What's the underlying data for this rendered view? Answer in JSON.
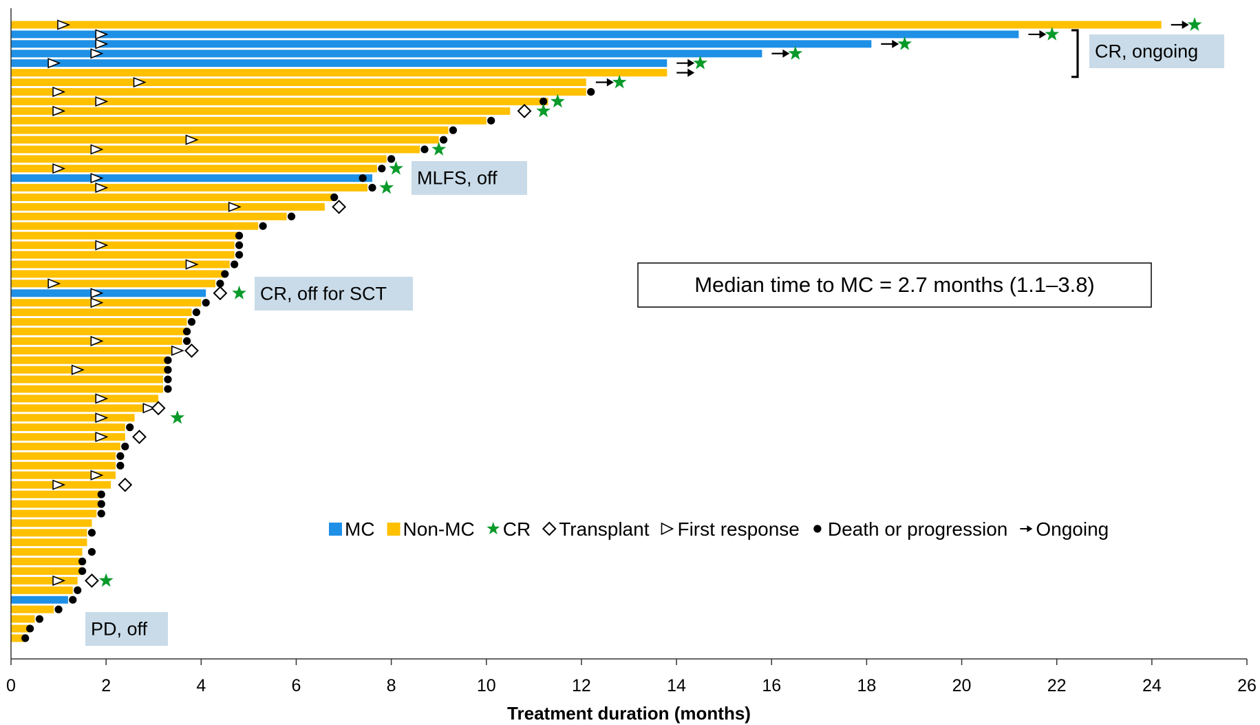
{
  "chart_data": {
    "type": "bar",
    "orientation": "horizontal",
    "title": "",
    "xlabel": "Treatment duration (months)",
    "ylabel": "",
    "xlim": [
      0,
      26
    ],
    "xticks": [
      "0",
      "2",
      "4",
      "6",
      "8",
      "10",
      "12",
      "14",
      "16",
      "18",
      "20",
      "22",
      "24",
      "26"
    ],
    "grid": false,
    "colors": {
      "MC": "#1e90e6",
      "Non-MC": "#ffc000",
      "CR": "#0a9a2a",
      "marker": "#000000",
      "annotation_bg": "#c9dbe8"
    },
    "legend": {
      "placement": "center-right",
      "entries": [
        {
          "name": "MC",
          "symbol": "square-blue"
        },
        {
          "name": "Non-MC",
          "symbol": "square-orange"
        },
        {
          "name": "CR",
          "symbol": "star"
        },
        {
          "name": "Transplant",
          "symbol": "diamond"
        },
        {
          "name": "First response",
          "symbol": "triangle"
        },
        {
          "name": "Death or progression",
          "symbol": "dot"
        },
        {
          "name": "Ongoing",
          "symbol": "arrow"
        }
      ]
    },
    "patients": [
      {
        "duration": 24.2,
        "mc": false,
        "first_response": 1.1,
        "ongoing": true,
        "cr": 24.9
      },
      {
        "duration": 21.2,
        "mc": true,
        "first_response": 1.9,
        "ongoing": true,
        "cr": 21.9
      },
      {
        "duration": 18.1,
        "mc": true,
        "first_response": 1.9,
        "ongoing": true,
        "cr": 18.8
      },
      {
        "duration": 15.8,
        "mc": true,
        "first_response": 1.8,
        "ongoing": true,
        "cr": 16.5
      },
      {
        "duration": 13.8,
        "mc": true,
        "first_response": 0.9,
        "ongoing": true,
        "cr": 14.5
      },
      {
        "duration": 13.8,
        "mc": false,
        "ongoing": true
      },
      {
        "duration": 12.1,
        "mc": false,
        "first_response": 2.7,
        "ongoing": true,
        "cr": 12.8
      },
      {
        "duration": 12.1,
        "mc": false,
        "first_response": 1.0,
        "death": 12.2
      },
      {
        "duration": 11.3,
        "mc": false,
        "first_response": 1.9,
        "death": 11.2,
        "cr": 11.5
      },
      {
        "duration": 10.5,
        "mc": false,
        "first_response": 1.0,
        "transplant": 10.8,
        "cr": 11.2
      },
      {
        "duration": 10.0,
        "mc": false,
        "death": 10.1
      },
      {
        "duration": 9.2,
        "mc": false,
        "death": 9.3
      },
      {
        "duration": 9.0,
        "mc": false,
        "first_response": 3.8,
        "death": 9.1
      },
      {
        "duration": 8.6,
        "mc": false,
        "first_response": 1.8,
        "death": 8.7,
        "cr": 9.0
      },
      {
        "duration": 7.9,
        "mc": false,
        "death": 8.0
      },
      {
        "duration": 7.7,
        "mc": false,
        "first_response": 1.0,
        "death": 7.8,
        "cr": 8.1
      },
      {
        "duration": 7.6,
        "mc": true,
        "first_response": 1.8,
        "death": 7.4
      },
      {
        "duration": 7.5,
        "mc": false,
        "first_response": 1.9,
        "death": 7.6,
        "cr": 7.9
      },
      {
        "duration": 6.8,
        "mc": false,
        "death": 6.8
      },
      {
        "duration": 6.6,
        "mc": false,
        "first_response": 4.7,
        "transplant": 6.9
      },
      {
        "duration": 5.8,
        "mc": false,
        "death": 5.9
      },
      {
        "duration": 5.2,
        "mc": false,
        "death": 5.3
      },
      {
        "duration": 4.8,
        "mc": false,
        "death": 4.8
      },
      {
        "duration": 4.7,
        "mc": false,
        "first_response": 1.9,
        "death": 4.8
      },
      {
        "duration": 4.7,
        "mc": false,
        "death": 4.8
      },
      {
        "duration": 4.6,
        "mc": false,
        "first_response": 3.8,
        "death": 4.7
      },
      {
        "duration": 4.5,
        "mc": false,
        "death": 4.5
      },
      {
        "duration": 4.3,
        "mc": false,
        "first_response": 0.9,
        "death": 4.4
      },
      {
        "duration": 4.1,
        "mc": true,
        "first_response": 1.8,
        "transplant": 4.4,
        "cr": 4.8
      },
      {
        "duration": 4.0,
        "mc": false,
        "first_response": 1.8,
        "death": 4.1
      },
      {
        "duration": 3.8,
        "mc": false,
        "death": 3.9
      },
      {
        "duration": 3.7,
        "mc": false,
        "death": 3.8
      },
      {
        "duration": 3.7,
        "mc": false,
        "death": 3.7
      },
      {
        "duration": 3.6,
        "mc": false,
        "first_response": 1.8,
        "death": 3.7
      },
      {
        "duration": 3.4,
        "mc": false,
        "first_response": 3.5,
        "transplant": 3.8
      },
      {
        "duration": 3.3,
        "mc": false,
        "death": 3.3
      },
      {
        "duration": 3.3,
        "mc": false,
        "first_response": 1.4,
        "death": 3.3
      },
      {
        "duration": 3.2,
        "mc": false,
        "death": 3.3
      },
      {
        "duration": 3.2,
        "mc": false,
        "death": 3.3
      },
      {
        "duration": 3.1,
        "mc": false,
        "first_response": 1.9
      },
      {
        "duration": 2.8,
        "mc": false,
        "first_response": 2.9,
        "transplant": 3.1
      },
      {
        "duration": 2.6,
        "mc": false,
        "first_response": 1.9,
        "cr": 3.5
      },
      {
        "duration": 2.4,
        "mc": false,
        "death": 2.5
      },
      {
        "duration": 2.4,
        "mc": false,
        "first_response": 1.9,
        "transplant": 2.7
      },
      {
        "duration": 2.3,
        "mc": false,
        "death": 2.4
      },
      {
        "duration": 2.2,
        "mc": false,
        "death": 2.3
      },
      {
        "duration": 2.2,
        "mc": false,
        "death": 2.3
      },
      {
        "duration": 2.2,
        "mc": false,
        "first_response": 1.8
      },
      {
        "duration": 2.1,
        "mc": false,
        "first_response": 1.0,
        "transplant": 2.4
      },
      {
        "duration": 1.9,
        "mc": false,
        "death": 1.9
      },
      {
        "duration": 1.9,
        "mc": false,
        "death": 1.9
      },
      {
        "duration": 1.8,
        "mc": false,
        "death": 1.9
      },
      {
        "duration": 1.7,
        "mc": false
      },
      {
        "duration": 1.6,
        "mc": false,
        "death": 1.7
      },
      {
        "duration": 1.6,
        "mc": false
      },
      {
        "duration": 1.5,
        "mc": false,
        "death": 1.7
      },
      {
        "duration": 1.5,
        "mc": false,
        "death": 1.5
      },
      {
        "duration": 1.5,
        "mc": false,
        "death": 1.5
      },
      {
        "duration": 1.4,
        "mc": false,
        "first_response": 1.0,
        "transplant": 1.7,
        "cr": 2.0
      },
      {
        "duration": 1.3,
        "mc": false,
        "death": 1.4
      },
      {
        "duration": 1.2,
        "mc": true,
        "death": 1.3
      },
      {
        "duration": 0.9,
        "mc": false,
        "death": 1.0
      },
      {
        "duration": 0.5,
        "mc": false,
        "death": 0.6
      },
      {
        "duration": 0.4,
        "mc": false,
        "death": 0.4
      },
      {
        "duration": 0.3,
        "mc": false,
        "death": 0.3
      }
    ],
    "annotations": [
      {
        "text": "CR, ongoing",
        "bracket_rows": [
          1,
          5
        ]
      },
      {
        "text": "MLFS, off",
        "row": 16
      },
      {
        "text": "CR, off for SCT",
        "row": 28
      },
      {
        "text": "PD, off",
        "row": 60
      }
    ],
    "callout": "Median time to MC = 2.7 months (1.1–3.8)"
  }
}
